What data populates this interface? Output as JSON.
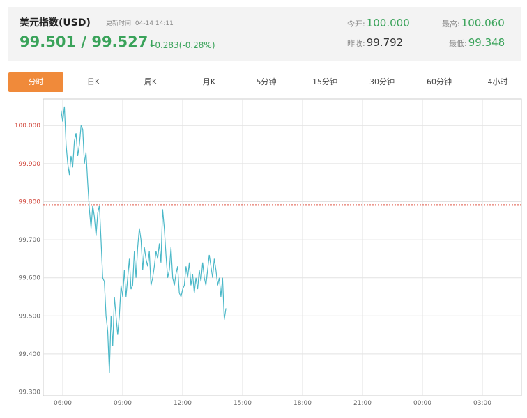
{
  "header": {
    "title": "美元指数(USD)",
    "update_label": "更新时间:",
    "update_time": "04-14 14:11",
    "price_pair": "99.501 / 99.527",
    "arrow": "↓",
    "change": "-0.283(-0.28%)",
    "open_label": "今开:",
    "open": "100.000",
    "prev_close_label": "昨收:",
    "prev_close": "99.792",
    "high_label": "最高:",
    "high": "100.060",
    "low_label": "最低:",
    "low": "99.348",
    "colors": {
      "up_down": "#3aa35a"
    }
  },
  "tabs": [
    {
      "label": "分时",
      "active": true
    },
    {
      "label": "日K"
    },
    {
      "label": "周K"
    },
    {
      "label": "月K"
    },
    {
      "label": "5分钟"
    },
    {
      "label": "15分钟"
    },
    {
      "label": "30分钟"
    },
    {
      "label": "60分钟"
    },
    {
      "label": "4小时"
    }
  ],
  "chart_data": {
    "type": "line",
    "title": "",
    "xlabel": "",
    "ylabel": "",
    "x_ticks": [
      "06:00",
      "09:00",
      "12:00",
      "15:00",
      "18:00",
      "21:00",
      "00:00",
      "03:00"
    ],
    "y_ticks": [
      "100.000",
      "99.900",
      "99.800",
      "99.700",
      "99.600",
      "99.500",
      "99.400",
      "99.300"
    ],
    "ylim": [
      99.3,
      100.06
    ],
    "reference_line": {
      "value": 99.792,
      "color": "#e05a4a",
      "style": "dashed"
    },
    "line_color": "#4ab8c8",
    "grid": true,
    "series": [
      {
        "x": [
          "05:55",
          "06:00",
          "06:05",
          "06:10",
          "06:15",
          "06:20",
          "06:25",
          "06:30",
          "06:35",
          "06:40",
          "06:45",
          "06:50",
          "06:55",
          "07:00",
          "07:05",
          "07:10",
          "07:15",
          "07:20",
          "07:25",
          "07:30",
          "07:35",
          "07:40",
          "07:45",
          "07:50",
          "07:55",
          "08:00",
          "08:05",
          "08:10",
          "08:15",
          "08:20",
          "08:25",
          "08:30",
          "08:35",
          "08:40",
          "08:45",
          "08:50",
          "08:55",
          "09:00",
          "09:05",
          "09:10",
          "09:15",
          "09:20",
          "09:25",
          "09:30",
          "09:35",
          "09:40",
          "09:45",
          "09:50",
          "09:55",
          "10:00",
          "10:05",
          "10:10",
          "10:15",
          "10:20",
          "10:25",
          "10:30",
          "10:35",
          "10:40",
          "10:45",
          "10:50",
          "10:55",
          "11:00",
          "11:05",
          "11:10",
          "11:15",
          "11:20",
          "11:25",
          "11:30",
          "11:35",
          "11:40",
          "11:45",
          "11:50",
          "11:55",
          "12:00",
          "12:05",
          "12:10",
          "12:15",
          "12:20",
          "12:25",
          "12:30",
          "12:35",
          "12:40",
          "12:45",
          "12:50",
          "12:55",
          "13:00",
          "13:05",
          "13:10",
          "13:15",
          "13:20",
          "13:25",
          "13:30",
          "13:35",
          "13:40",
          "13:45",
          "13:50",
          "13:55",
          "14:00",
          "14:05",
          "14:10"
        ],
        "y": [
          100.04,
          100.01,
          100.05,
          99.95,
          99.9,
          99.87,
          99.92,
          99.89,
          99.96,
          99.98,
          99.92,
          99.95,
          100.0,
          99.99,
          99.9,
          99.93,
          99.85,
          99.78,
          99.73,
          99.79,
          99.76,
          99.71,
          99.77,
          99.79,
          99.7,
          99.6,
          99.59,
          99.5,
          99.46,
          99.35,
          99.5,
          99.42,
          99.55,
          99.5,
          99.45,
          99.5,
          99.58,
          99.55,
          99.62,
          99.55,
          99.6,
          99.65,
          99.57,
          99.58,
          99.67,
          99.6,
          99.68,
          99.73,
          99.7,
          99.62,
          99.68,
          99.65,
          99.63,
          99.67,
          99.58,
          99.6,
          99.63,
          99.67,
          99.65,
          99.69,
          99.64,
          99.78,
          99.73,
          99.66,
          99.6,
          99.62,
          99.68,
          99.6,
          99.58,
          99.61,
          99.63,
          99.56,
          99.55,
          99.57,
          99.58,
          99.63,
          99.6,
          99.64,
          99.58,
          99.61,
          99.56,
          99.6,
          99.57,
          99.62,
          99.59,
          99.64,
          99.6,
          99.58,
          99.62,
          99.66,
          99.63,
          99.6,
          99.65,
          99.62,
          99.58,
          99.6,
          99.55,
          99.6,
          99.49,
          99.52
        ]
      }
    ]
  }
}
